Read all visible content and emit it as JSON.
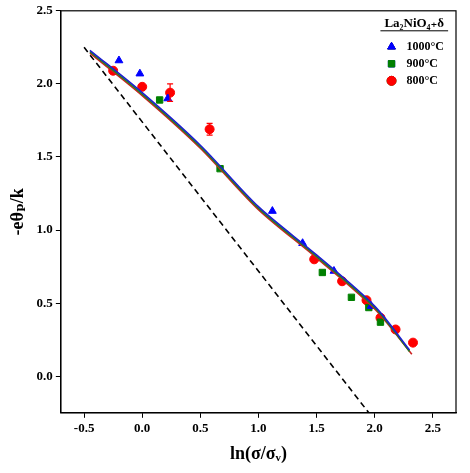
{
  "chart_data": {
    "type": "scatter",
    "legend_title": "La₂NiO₄₊δ",
    "legend": "upper right",
    "grid": false,
    "x_label": "ln(σ/σᵥ)",
    "y_label": "-eθₚ/k",
    "xlim": [
      -0.7,
      2.7
    ],
    "ylim": [
      -0.25,
      2.5
    ],
    "xticks": [
      -0.5,
      {
        "value": 0,
        "label": "0.0"
      },
      0.5,
      {
        "value": 1,
        "label": "1.0"
      },
      1.5,
      {
        "value": 2,
        "label": "2.0"
      },
      2.5
    ],
    "yticks": [
      {
        "value": 0,
        "label": "0.0"
      },
      0.5,
      {
        "value": 1,
        "label": "1.0"
      },
      1.5,
      {
        "value": 2,
        "label": "2.0"
      },
      2.5
    ],
    "series": [
      {
        "type": "line",
        "color": "#1f1fd0",
        "line_style": "solid",
        "x": [
          -0.45,
          0.0,
          0.5,
          1.0,
          1.5,
          2.0,
          2.3
        ],
        "values": [
          2.23,
          1.94,
          1.58,
          1.16,
          0.83,
          0.48,
          0.18
        ]
      },
      {
        "type": "line",
        "color": "#1a8a1a",
        "line_style": "solid",
        "x": [
          -0.45,
          0.0,
          0.5,
          1.0,
          1.5,
          2.0,
          2.3
        ],
        "values": [
          2.22,
          1.93,
          1.57,
          1.15,
          0.82,
          0.47,
          0.17
        ]
      },
      {
        "type": "line",
        "color": "#cc2020",
        "line_style": "solid",
        "x": [
          -0.45,
          0.0,
          0.5,
          1.0,
          1.5,
          2.0,
          2.32
        ],
        "values": [
          2.21,
          1.92,
          1.56,
          1.14,
          0.81,
          0.46,
          0.15
        ]
      },
      {
        "type": "line",
        "color": "#000000",
        "line_style": "dashed",
        "x": [
          -0.5,
          1.95
        ],
        "values": [
          2.25,
          -0.25
        ]
      },
      {
        "type": "scatter",
        "name": "1000°C",
        "color": "#0000ff",
        "marker": "triangle",
        "x": [
          -0.2,
          -0.02,
          0.22,
          1.12,
          1.38,
          1.65,
          1.97
        ],
        "values": [
          2.16,
          2.07,
          1.9,
          1.13,
          0.91,
          0.72,
          0.48
        ]
      },
      {
        "type": "scatter",
        "name": "900°C",
        "color": "#008000",
        "marker": "square",
        "x": [
          0.15,
          0.67,
          1.55,
          1.8,
          1.95,
          2.05
        ],
        "values": [
          1.89,
          1.42,
          0.71,
          0.54,
          0.47,
          0.37
        ]
      },
      {
        "type": "scatter",
        "name": "800°C",
        "color": "#ff0000",
        "marker": "circle",
        "x": [
          -0.25,
          0.0,
          0.24,
          0.58,
          1.48,
          1.72,
          1.93,
          2.05,
          2.18,
          2.33
        ],
        "values": [
          2.09,
          1.98,
          1.94,
          1.69,
          0.8,
          0.65,
          0.52,
          0.4,
          0.32,
          0.23
        ],
        "errors": [
          null,
          null,
          0.06,
          0.04,
          null,
          null,
          null,
          null,
          null,
          null
        ]
      }
    ]
  }
}
